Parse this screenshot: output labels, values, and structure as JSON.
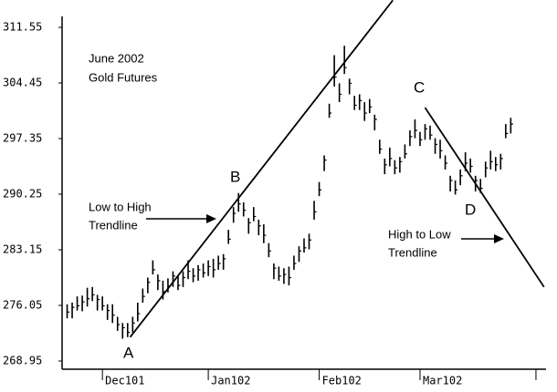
{
  "chart_data": {
    "type": "ohlc",
    "color": "#000000",
    "x": [
      -7,
      -6,
      -5,
      -4,
      -3,
      -2,
      -1,
      0,
      1,
      2,
      3,
      4,
      5,
      6,
      7,
      8,
      9,
      10,
      11,
      12,
      13,
      14,
      15,
      16,
      17,
      18,
      19,
      20,
      21,
      22,
      23,
      24,
      25,
      26,
      27,
      28,
      29,
      30,
      31,
      32,
      33,
      34,
      35,
      36,
      37,
      38,
      39,
      40,
      41,
      42,
      43,
      44,
      45,
      46,
      47,
      48,
      49,
      50,
      51,
      52,
      53,
      54,
      55,
      56,
      57,
      58,
      59,
      60,
      61,
      62,
      63,
      64,
      65,
      66,
      67,
      68,
      69,
      70,
      71,
      72,
      73,
      74,
      75,
      76,
      77,
      78,
      79,
      80,
      81
    ],
    "high": [
      276.2,
      276.4,
      277.2,
      277.3,
      278.3,
      278.4,
      277.4,
      277.2,
      276.2,
      276.2,
      274.6,
      273.8,
      273.8,
      274.6,
      276.4,
      278.2,
      279.6,
      281.8,
      280.0,
      279.2,
      279.5,
      280.4,
      279.8,
      280.4,
      281.8,
      280.8,
      281.2,
      281.4,
      281.8,
      282.0,
      282.4,
      282.6,
      285.7,
      288.6,
      290.4,
      289.2,
      287.2,
      288.6,
      287.0,
      286.4,
      284.0,
      281.4,
      281.0,
      280.8,
      281.0,
      282.4,
      283.6,
      284.6,
      285.2,
      289.4,
      291.8,
      295.2,
      301.8,
      308.0,
      304.4,
      309.2,
      305.0,
      302.8,
      303.0,
      302.0,
      302.4,
      300.4,
      297.2,
      294.8,
      296.2,
      294.6,
      295.0,
      296.6,
      298.4,
      299.8,
      298.2,
      299.2,
      299.0,
      297.4,
      297.2,
      295.2,
      292.6,
      292.0,
      293.4,
      295.6,
      294.8,
      292.6,
      292.2,
      294.4,
      295.8,
      295.0,
      295.4,
      299.2,
      300.0
    ],
    "low": [
      274.4,
      274.4,
      275.4,
      275.3,
      275.9,
      276.6,
      275.4,
      275.4,
      274.2,
      273.8,
      272.8,
      271.8,
      272.0,
      272.6,
      274.0,
      276.4,
      277.6,
      280.0,
      278.0,
      276.8,
      277.7,
      278.4,
      278.0,
      278.4,
      279.4,
      279.0,
      279.2,
      279.6,
      279.8,
      279.6,
      280.6,
      280.6,
      283.9,
      286.6,
      288.0,
      287.4,
      285.2,
      286.8,
      285.0,
      284.0,
      282.2,
      279.4,
      279.2,
      278.8,
      278.6,
      280.6,
      281.6,
      282.8,
      283.2,
      287.0,
      290.0,
      293.2,
      300.0,
      304.0,
      302.0,
      305.6,
      303.0,
      301.0,
      301.0,
      299.6,
      300.6,
      298.4,
      295.4,
      292.8,
      293.8,
      292.8,
      293.0,
      294.8,
      296.4,
      297.4,
      296.4,
      297.2,
      297.2,
      295.4,
      294.8,
      293.4,
      290.6,
      290.2,
      291.4,
      293.2,
      293.0,
      290.6,
      290.4,
      292.4,
      293.4,
      293.2,
      293.4,
      297.4,
      298.0
    ],
    "close": [
      275.2,
      275.8,
      276.0,
      276.5,
      276.9,
      277.4,
      276.8,
      276.0,
      275.4,
      274.8,
      273.6,
      273.2,
      272.6,
      273.8,
      275.0,
      277.2,
      279.0,
      280.6,
      279.2,
      277.8,
      278.5,
      279.8,
      278.6,
      279.6,
      280.4,
      279.8,
      280.6,
      280.2,
      281.0,
      280.6,
      281.4,
      282.0,
      284.5,
      287.8,
      289.0,
      288.2,
      286.6,
      287.4,
      286.2,
      285.0,
      283.0,
      280.8,
      279.8,
      280.0,
      279.6,
      281.4,
      283.0,
      283.4,
      284.4,
      288.0,
      290.8,
      294.6,
      300.6,
      305.2,
      303.0,
      306.4,
      304.4,
      301.6,
      302.2,
      300.6,
      301.4,
      299.8,
      296.0,
      294.0,
      294.8,
      293.6,
      294.4,
      295.4,
      297.6,
      298.4,
      297.2,
      298.6,
      297.8,
      296.6,
      295.8,
      294.2,
      292.0,
      290.8,
      292.6,
      294.2,
      293.8,
      292.0,
      291.0,
      293.6,
      294.4,
      294.0,
      294.8,
      298.0,
      299.2
    ],
    "xlim": [
      -8,
      88
    ],
    "xticks": [
      {
        "value": 0,
        "label": "Dec101"
      },
      {
        "value": 21,
        "label": "Jan102"
      },
      {
        "value": 43,
        "label": "Feb102"
      },
      {
        "value": 63,
        "label": "Mar102"
      },
      {
        "value": 86,
        "label": null
      }
    ],
    "ylim": [
      268.95,
      311.55
    ],
    "yticks": [
      268.95,
      276.05,
      283.15,
      290.25,
      297.35,
      304.45,
      311.55
    ],
    "trendlines": [
      {
        "x": [
          5.5,
          57.6
        ],
        "y": [
          272.0,
          315.0
        ]
      },
      {
        "x": [
          64,
          87.6
        ],
        "y": [
          301.3,
          278.4
        ]
      }
    ],
    "annotations": [
      "June 2002",
      "Gold Futures",
      "Low to High",
      "Trendline",
      "B",
      "A",
      "C",
      "D",
      "High to Low",
      "Trendline"
    ]
  }
}
